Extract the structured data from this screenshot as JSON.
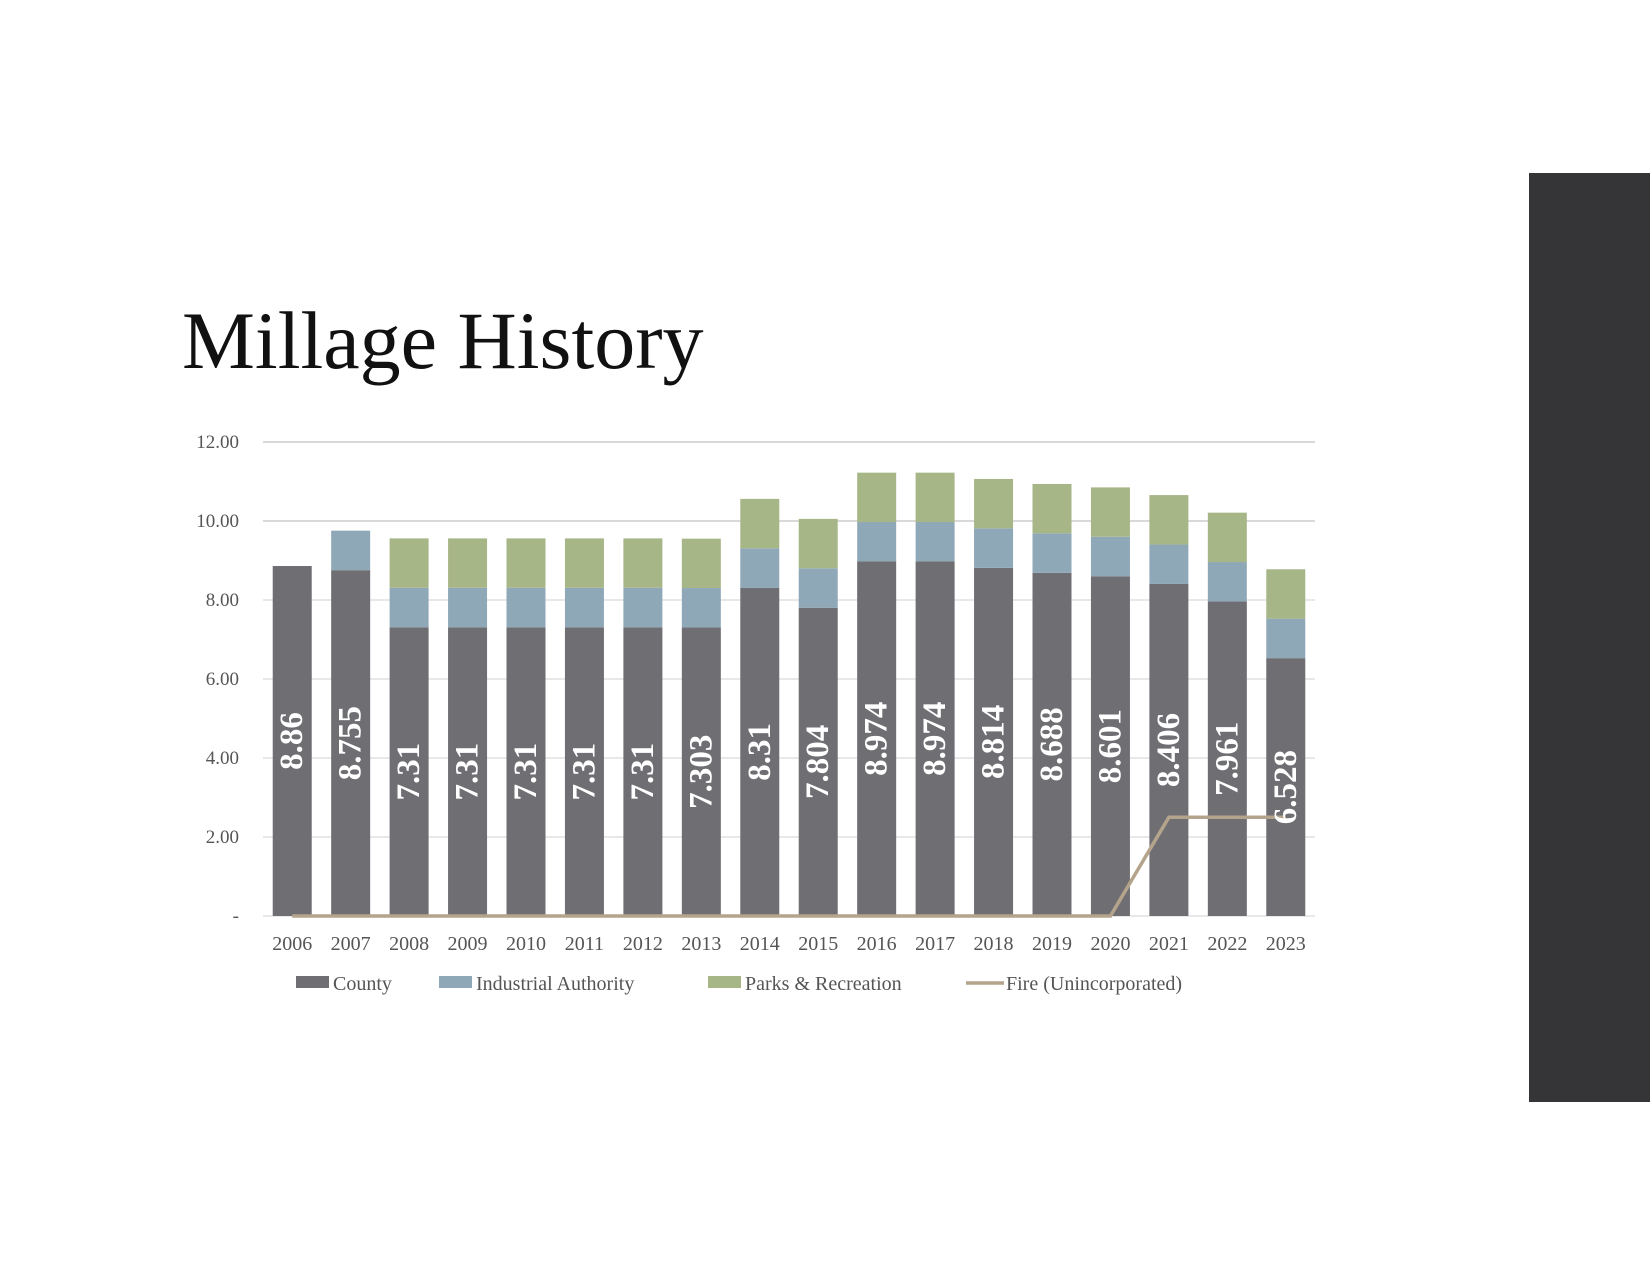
{
  "title": "Millage History",
  "colors": {
    "county": "#6f6f73",
    "industrial": "#8fa8b8",
    "parks": "#a7b687",
    "fire": "#b5a48c",
    "panel": "#353537",
    "grid": "#d9d9d9"
  },
  "chart_data": {
    "type": "bar",
    "stacked": true,
    "title": "",
    "xlabel": "",
    "ylabel": "",
    "ylim": [
      0,
      12
    ],
    "yticks": [
      0,
      2,
      4,
      6,
      8,
      10,
      12
    ],
    "ytick_labels": [
      "-",
      "2.00",
      "4.00",
      "6.00",
      "8.00",
      "10.00",
      "12.00"
    ],
    "grid": true,
    "legend_position": "bottom",
    "categories": [
      "2006",
      "2007",
      "2008",
      "2009",
      "2010",
      "2011",
      "2012",
      "2013",
      "2014",
      "2015",
      "2016",
      "2017",
      "2018",
      "2019",
      "2020",
      "2021",
      "2022",
      "2023"
    ],
    "series": [
      {
        "name": "County",
        "type": "bar",
        "color_key": "county",
        "values": [
          8.86,
          8.755,
          7.31,
          7.31,
          7.31,
          7.31,
          7.31,
          7.303,
          8.31,
          7.804,
          8.974,
          8.974,
          8.814,
          8.688,
          8.601,
          8.406,
          7.961,
          6.528
        ],
        "data_labels": [
          "8.86",
          "8.755",
          "7.31",
          "7.31",
          "7.31",
          "7.31",
          "7.31",
          "7.303",
          "8.31",
          "7.804",
          "8.974",
          "8.974",
          "8.814",
          "8.688",
          "8.601",
          "8.406",
          "7.961",
          "6.528"
        ]
      },
      {
        "name": "Industrial Authority",
        "type": "bar",
        "color_key": "industrial",
        "values": [
          0,
          1.0,
          1.0,
          1.0,
          1.0,
          1.0,
          1.0,
          1.0,
          1.0,
          1.0,
          1.0,
          1.0,
          1.0,
          1.0,
          1.0,
          1.0,
          1.0,
          1.0
        ]
      },
      {
        "name": "Parks & Recreation",
        "type": "bar",
        "color_key": "parks",
        "values": [
          0,
          0,
          1.25,
          1.25,
          1.25,
          1.25,
          1.25,
          1.25,
          1.25,
          1.25,
          1.25,
          1.25,
          1.25,
          1.25,
          1.25,
          1.25,
          1.25,
          1.25
        ]
      },
      {
        "name": "Fire (Unincorporated)",
        "type": "line",
        "color_key": "fire",
        "values": [
          0,
          0,
          0,
          0,
          0,
          0,
          0,
          0,
          0,
          0,
          0,
          0,
          0,
          0,
          0,
          2.5,
          2.5,
          2.5
        ]
      }
    ]
  }
}
